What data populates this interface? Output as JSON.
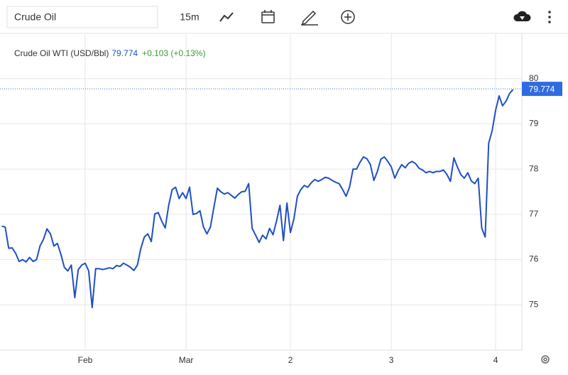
{
  "toolbar": {
    "symbol": "Crude Oil",
    "interval": "15m"
  },
  "chart_data": {
    "type": "line",
    "categories": [
      null,
      null,
      null,
      null,
      null,
      null,
      null,
      null,
      null,
      null,
      null,
      null,
      null,
      null,
      null,
      null,
      null,
      null,
      null,
      null,
      null,
      null,
      null,
      null,
      "Feb",
      null,
      null,
      null,
      null,
      null,
      null,
      null,
      null,
      null,
      null,
      null,
      null,
      null,
      null,
      null,
      null,
      null,
      null,
      null,
      null,
      null,
      null,
      null,
      null,
      null,
      null,
      null,
      null,
      "Mar",
      null,
      null,
      null,
      null,
      null,
      null,
      null,
      null,
      null,
      null,
      null,
      null,
      null,
      null,
      null,
      null,
      null,
      null,
      null,
      null,
      null,
      null,
      null,
      null,
      null,
      null,
      null,
      null,
      null,
      "2",
      null,
      null,
      null,
      null,
      null,
      null,
      null,
      null,
      null,
      null,
      null,
      null,
      null,
      null,
      null,
      null,
      null,
      null,
      null,
      null,
      null,
      null,
      null,
      null,
      null,
      null,
      null,
      null,
      "3",
      null,
      null,
      null,
      null,
      null,
      null,
      null,
      null,
      null,
      null,
      null,
      null,
      null,
      null,
      null,
      null,
      null,
      null,
      null,
      null,
      null,
      null,
      null,
      null,
      null,
      null,
      null,
      null,
      null,
      "4",
      null,
      null,
      null,
      null,
      null
    ],
    "series": [
      {
        "name": "Crude Oil WTI (USD/Bbl)",
        "color": "#1f4fc4",
        "values": [
          76.74,
          76.72,
          76.25,
          76.26,
          76.14,
          75.96,
          76.0,
          75.95,
          76.05,
          75.96,
          76.0,
          76.3,
          76.45,
          76.68,
          76.57,
          76.3,
          76.36,
          76.12,
          75.83,
          75.75,
          75.88,
          75.16,
          75.78,
          75.88,
          75.92,
          75.75,
          74.94,
          75.8,
          75.8,
          75.78,
          75.8,
          75.82,
          75.8,
          75.87,
          75.85,
          75.92,
          75.88,
          75.83,
          75.76,
          75.88,
          76.25,
          76.5,
          76.57,
          76.4,
          77.01,
          77.04,
          76.85,
          76.7,
          77.2,
          77.55,
          77.6,
          77.35,
          77.48,
          77.35,
          77.6,
          77.0,
          77.02,
          77.08,
          76.72,
          76.57,
          76.72,
          77.16,
          77.58,
          77.5,
          77.45,
          77.48,
          77.42,
          77.36,
          77.44,
          77.5,
          77.51,
          77.68,
          76.69,
          76.54,
          76.38,
          76.54,
          76.46,
          76.69,
          76.55,
          76.85,
          77.2,
          76.42,
          77.25,
          76.6,
          76.9,
          77.4,
          77.55,
          77.64,
          77.6,
          77.7,
          77.77,
          77.73,
          77.77,
          77.82,
          77.8,
          77.75,
          77.71,
          77.68,
          77.55,
          77.4,
          77.6,
          78.0,
          78.0,
          78.15,
          78.27,
          78.23,
          78.1,
          77.75,
          77.95,
          78.22,
          78.27,
          78.17,
          78.05,
          77.8,
          77.97,
          78.1,
          78.03,
          78.13,
          78.17,
          78.12,
          78.02,
          77.98,
          77.92,
          77.95,
          77.92,
          77.95,
          77.95,
          77.98,
          77.88,
          77.73,
          78.25,
          78.05,
          77.88,
          77.8,
          77.92,
          77.74,
          77.68,
          77.8,
          76.7,
          76.5,
          78.57,
          78.85,
          79.3,
          79.62,
          79.4,
          79.5,
          79.67,
          79.76
        ]
      }
    ],
    "last_value": 79.774,
    "change_label": "+0.103 (+0.13%)",
    "change_color": "#3a9a3a",
    "tag_color": "#2f6be0",
    "ylim": [
      74,
      81
    ],
    "yticks": [
      75,
      76,
      77,
      78,
      79,
      80
    ],
    "grid": true
  }
}
